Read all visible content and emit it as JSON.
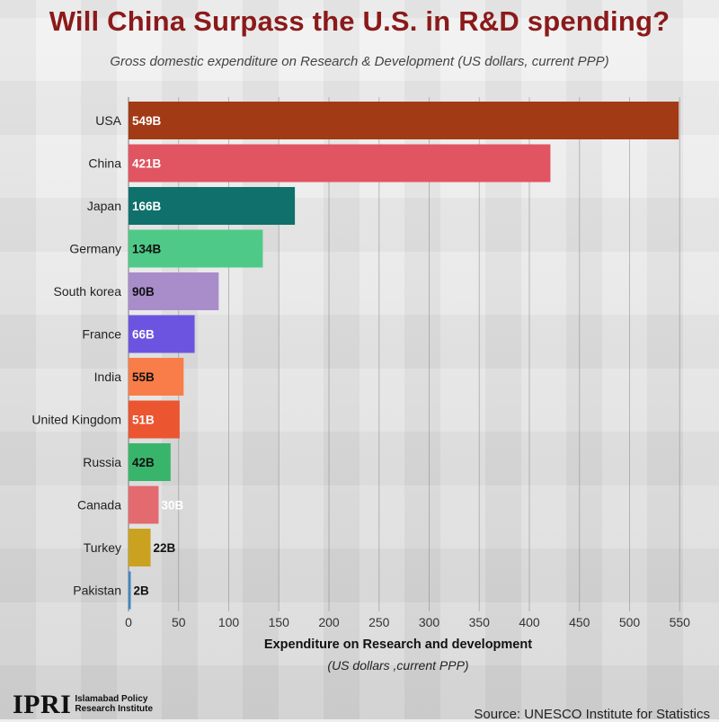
{
  "title": "Will China Surpass the U.S. in R&D spending?",
  "subtitle": "Gross domestic expenditure on Research & Development (US dollars, current PPP)",
  "xlabel": "Expenditure on Research and development",
  "xlabel_sub": "(US dollars ,current PPP)",
  "source": "Source: UNESCO Institute for Statistics",
  "logo": {
    "mark": "IPRI",
    "name": "Islamabad Policy Research Institute"
  },
  "chart_data": {
    "type": "bar",
    "orientation": "horizontal",
    "title": "Will China Surpass the U.S. in R&D spending?",
    "xlabel": "Expenditure on Research and development (US dollars ,current PPP)",
    "ylabel": "",
    "xlim": [
      0,
      550
    ],
    "xticks": [
      0,
      50,
      100,
      150,
      200,
      250,
      300,
      350,
      400,
      450,
      500,
      550
    ],
    "grid": true,
    "categories": [
      "USA",
      "China",
      "Japan",
      "Germany",
      "South korea",
      "France",
      "India",
      "United Kingdom",
      "Russia",
      "Canada",
      "Turkey",
      "Pakistan"
    ],
    "values": [
      549,
      421,
      166,
      134,
      90,
      66,
      55,
      51,
      42,
      30,
      22,
      2
    ],
    "value_labels": [
      "549B",
      "421B",
      "166B",
      "134B",
      "90B",
      "66B",
      "55B",
      "51B",
      "42B",
      "30B",
      "22B",
      "2B"
    ],
    "colors": [
      "#a23a16",
      "#e05561",
      "#0f706c",
      "#4fc987",
      "#a98dcb",
      "#6c54e0",
      "#f97d48",
      "#eb5530",
      "#39b56b",
      "#e36a6f",
      "#caa21f",
      "#3c87c2"
    ],
    "label_colors": [
      "#ffffff",
      "#ffffff",
      "#ffffff",
      "#111111",
      "#111111",
      "#ffffff",
      "#111111",
      "#ffffff",
      "#111111",
      "#ffffff",
      "#111111",
      "#111111"
    ]
  }
}
